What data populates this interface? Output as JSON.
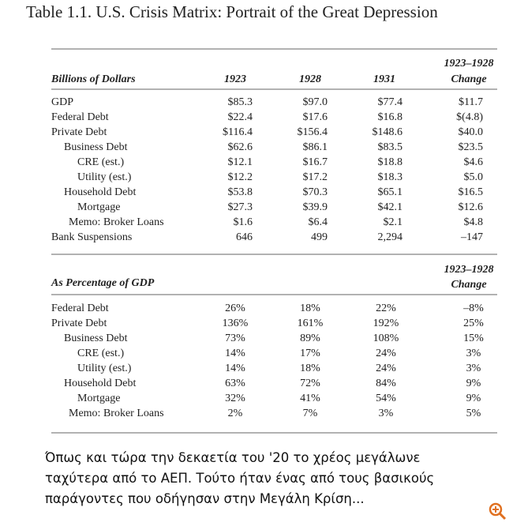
{
  "title": "Table 1.1. U.S. Crisis Matrix: Portrait of the Great Depression",
  "table1": {
    "header": {
      "label": "Billions of Dollars",
      "columns": [
        "1923",
        "1928",
        "1931"
      ],
      "change_range": "1923–1928",
      "change": "Change"
    },
    "rows": [
      [
        "GDP",
        "$85.3",
        "$97.0",
        "$77.4",
        "$11.7"
      ],
      [
        "Federal Debt",
        "$22.4",
        "$17.6",
        "$16.8",
        "$(4.8)"
      ],
      [
        "Private Debt",
        "$116.4",
        "$156.4",
        "$148.6",
        "$40.0"
      ],
      [
        "Business Debt",
        "$62.6",
        "$86.1",
        "$83.5",
        "$23.5"
      ],
      [
        "CRE (est.)",
        "$12.1",
        "$16.7",
        "$18.8",
        "$4.6"
      ],
      [
        "Utility (est.)",
        "$12.2",
        "$17.2",
        "$18.3",
        "$5.0"
      ],
      [
        "Household Debt",
        "$53.8",
        "$70.3",
        "$65.1",
        "$16.5"
      ],
      [
        "Mortgage",
        "$27.3",
        "$39.9",
        "$42.1",
        "$12.6"
      ],
      [
        "Memo: Broker Loans",
        "$1.6",
        "$6.4",
        "$2.1",
        "$4.8"
      ],
      [
        "Bank Suspensions",
        "646",
        "499",
        "2,294",
        "–147"
      ]
    ]
  },
  "table2": {
    "header": {
      "label": "As Percentage of GDP",
      "change_range": "1923–1928",
      "change": "Change"
    },
    "rows": [
      [
        "Federal Debt",
        "26%",
        "18%",
        "22%",
        "–8%"
      ],
      [
        "Private Debt",
        "136%",
        "161%",
        "192%",
        "25%"
      ],
      [
        "Business Debt",
        "73%",
        "89%",
        "108%",
        "15%"
      ],
      [
        "CRE (est.)",
        "14%",
        "17%",
        "24%",
        "3%"
      ],
      [
        "Utility (est.)",
        "14%",
        "18%",
        "24%",
        "3%"
      ],
      [
        "Household Debt",
        "63%",
        "72%",
        "84%",
        "9%"
      ],
      [
        "Mortgage",
        "32%",
        "41%",
        "54%",
        "9%"
      ],
      [
        "Memo: Broker Loans",
        "2%",
        "7%",
        "3%",
        "5%"
      ]
    ]
  },
  "caption": [
    "Όπως και τώρα την δεκαετία του '20 το χρέος μεγάλωνε",
    "ταχύτερα από το ΑΕΠ. Τούτο ήταν ένας από τους βασικούς",
    "παράγοντες που οδήγησαν στην Μεγάλη Κρίση..."
  ]
}
